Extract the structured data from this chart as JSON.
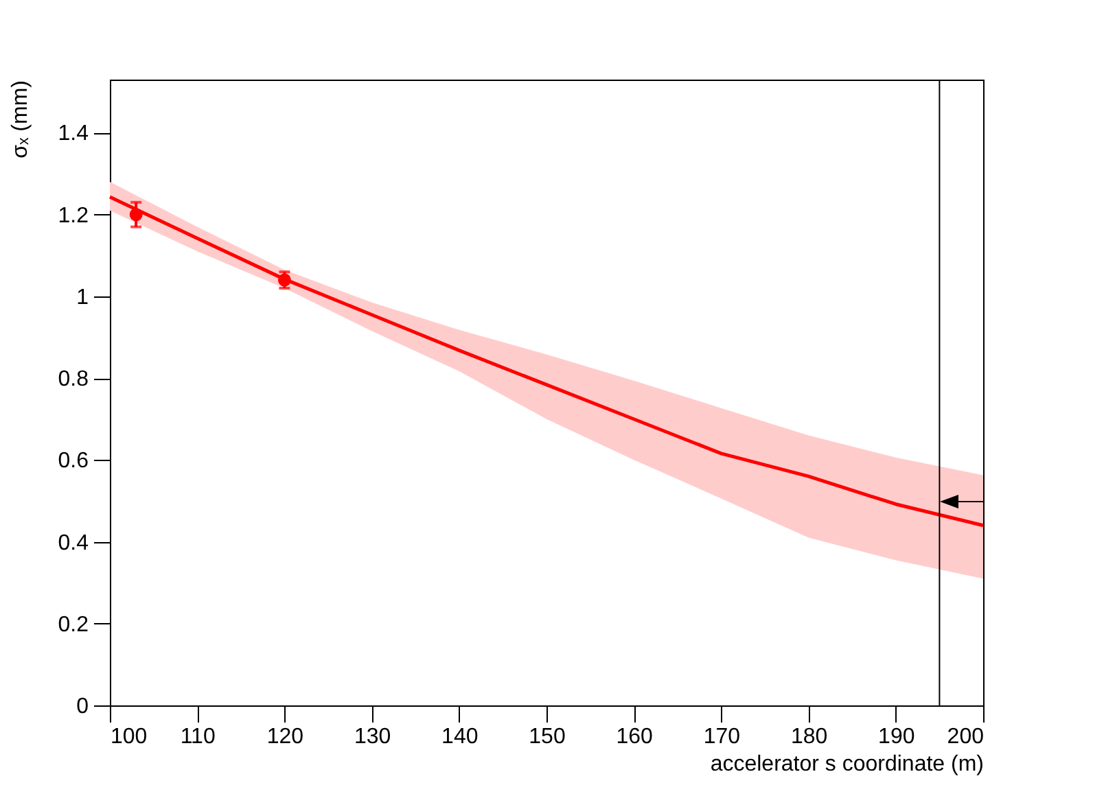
{
  "chart_data": {
    "type": "line",
    "xlabel": "accelerator s coordinate (m)",
    "ylabel": "σₓ (mm)",
    "xlim": [
      100,
      200
    ],
    "ylim": [
      0,
      1.53
    ],
    "xticks": [
      100,
      110,
      120,
      130,
      140,
      150,
      160,
      170,
      180,
      190,
      200
    ],
    "yticks": [
      0,
      0.2,
      0.4,
      0.6,
      0.8,
      1,
      1.2,
      1.4
    ],
    "grid": false,
    "series": [
      {
        "color": "#ff0000",
        "x": [
          100,
          110,
          120,
          130,
          140,
          150,
          160,
          170,
          180,
          190,
          200
        ],
        "values": [
          1.243,
          1.142,
          1.042,
          0.955,
          0.868,
          0.784,
          0.7,
          0.616,
          0.56,
          0.492,
          0.44
        ],
        "lower": [
          1.21,
          1.11,
          1.02,
          0.915,
          0.817,
          0.7,
          0.6,
          0.506,
          0.41,
          0.355,
          0.31
        ],
        "upper": [
          1.28,
          1.17,
          1.065,
          0.985,
          0.918,
          0.858,
          0.794,
          0.727,
          0.66,
          0.606,
          0.563
        ]
      },
      {
        "type": "scatter",
        "color": "#ff0000",
        "marker": "circle",
        "x": [
          103,
          120
        ],
        "values": [
          1.2,
          1.04
        ],
        "errors": [
          0.03,
          0.02
        ]
      }
    ],
    "ref_lines": [
      {
        "axis": "x",
        "value": 195,
        "color": "#000000"
      }
    ]
  }
}
